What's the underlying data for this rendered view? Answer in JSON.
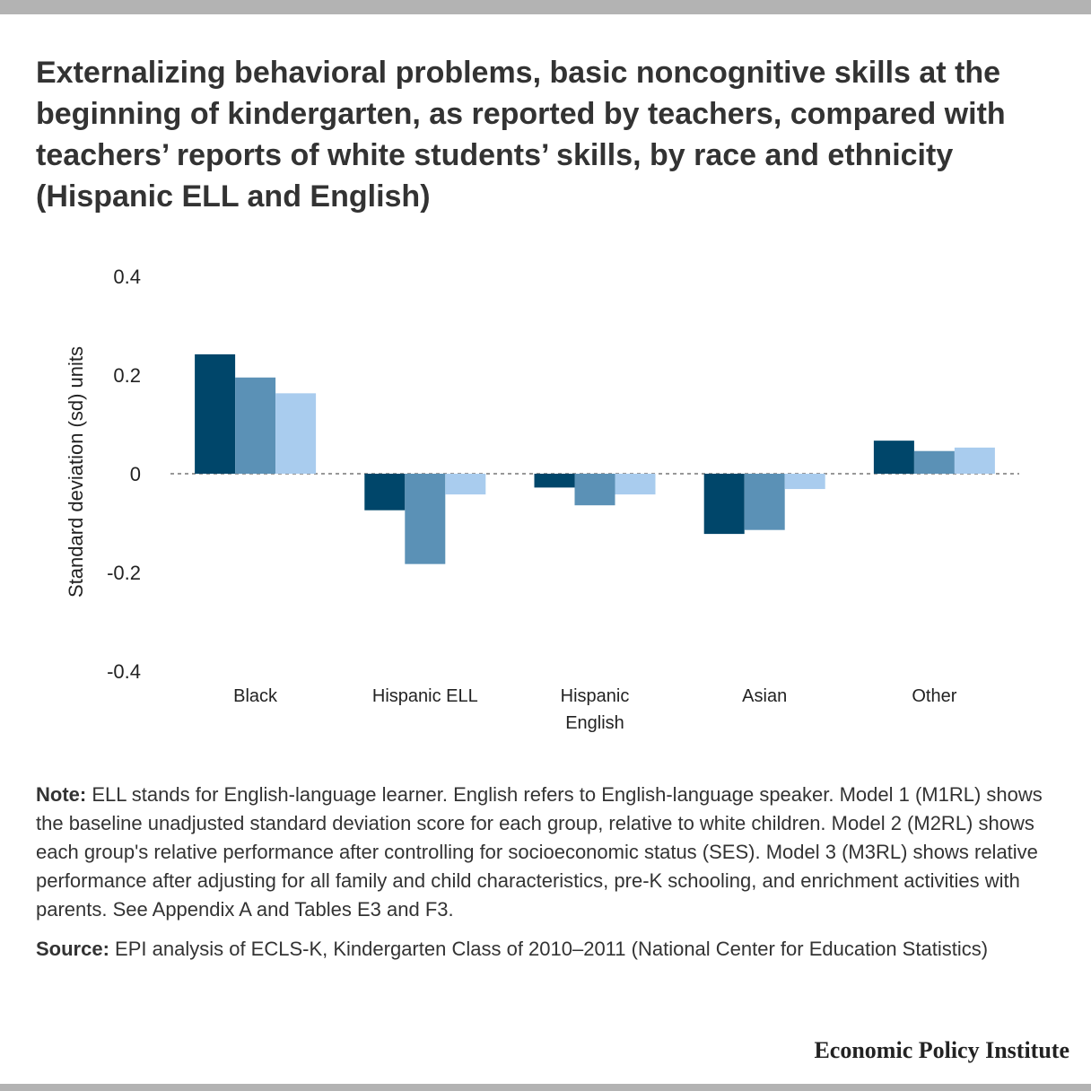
{
  "title": "Externalizing behavioral problems, basic noncognitive skills at the beginning of kindergarten, as reported by teachers, compared with teachers’ reports of white students’ skills, by race and ethnicity (Hispanic ELL and English)",
  "note": {
    "label": "Note:",
    "text": "ELL stands for English-language learner. English refers to English-language speaker. Model 1 (M1RL) shows the baseline unadjusted standard deviation score for each group, relative to white children. Model 2 (M2RL) shows each group's relative performance after controlling for socioeconomic status (SES). Model 3 (M3RL) shows relative performance after adjusting for all family and child characteristics, pre-K schooling, and enrichment activities with parents. See Appendix A and Tables E3 and F3."
  },
  "source": {
    "label": "Source:",
    "text": "EPI analysis of ECLS-K, Kindergarten Class of 2010–2011 (National Center for Education Statistics)"
  },
  "brand": "Economic Policy Institute",
  "chart_data": {
    "type": "bar",
    "title": "Externalizing behavioral problems, basic noncognitive skills at the beginning of kindergarten, as reported by teachers, compared with teachers’ reports of white students’ skills, by race and ethnicity (Hispanic ELL and English)",
    "ylabel": "Standard deviation (sd) units",
    "xlabel": "",
    "ylim": [
      -0.4,
      0.4
    ],
    "yticks": [
      0.4,
      0.2,
      0,
      -0.2,
      -0.4
    ],
    "ytick_labels": [
      "0.4",
      "0.2",
      "0",
      "-0.2",
      "-0.4"
    ],
    "categories": [
      [
        "Black"
      ],
      [
        "Hispanic ELL"
      ],
      [
        "Hispanic",
        "English"
      ],
      [
        "Asian"
      ],
      [
        "Other"
      ]
    ],
    "series": [
      {
        "color": "#00466a",
        "values": [
          0.242,
          -0.074,
          -0.028,
          -0.122,
          0.067
        ]
      },
      {
        "color": "#5b91b6",
        "values": [
          0.195,
          -0.183,
          -0.064,
          -0.114,
          0.046
        ]
      },
      {
        "color": "#a9ccee",
        "values": [
          0.163,
          -0.042,
          -0.042,
          -0.031,
          0.053
        ]
      }
    ],
    "zero_line": "dashed",
    "grid": false,
    "legend": "none"
  }
}
